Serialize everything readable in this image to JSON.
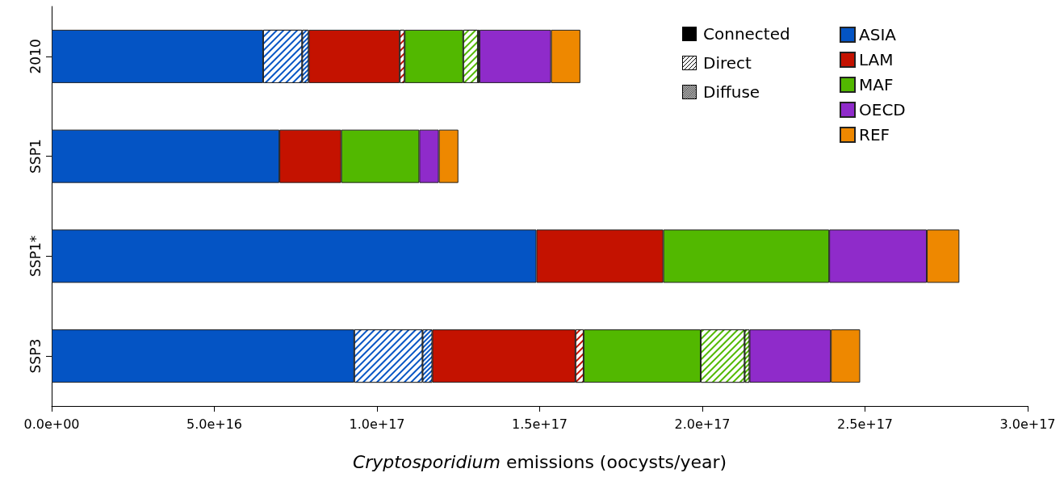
{
  "chart_data": {
    "type": "bar",
    "orientation": "horizontal",
    "stacked": true,
    "categories": [
      "2010",
      "SSP1",
      "SSP1*",
      "SSP3"
    ],
    "xlabel": "Cryptosporidium emissions (oocysts/year)",
    "annotations": [
      "Connected",
      "Direct",
      "Diffuse"
    ],
    "xlim": [
      0,
      3e+17
    ],
    "xticks": [
      {
        "value": 0,
        "label": "0.0e+00"
      },
      {
        "value": 5e+16,
        "label": "5.0e+16"
      },
      {
        "value": 1e+17,
        "label": "1.0e+17"
      },
      {
        "value": 1.5e+17,
        "label": "1.5e+17"
      },
      {
        "value": 2e+17,
        "label": "2.0e+17"
      },
      {
        "value": 2.5e+17,
        "label": "2.5e+17"
      },
      {
        "value": 3e+17,
        "label": "3.0e+17"
      }
    ],
    "grid": false,
    "legend": "top right",
    "series": [
      {
        "name": "ASIA",
        "color": "#0454c4",
        "values": [
          6.5e+16,
          7e+16,
          1.49e+17,
          9.3e+16
        ]
      },
      {
        "color": "#0454c4",
        "values": [
          1.2e+16,
          null,
          null,
          2.1e+16
        ]
      },
      {
        "color": "#0454c4",
        "values": [
          2000000000000000.0,
          null,
          null,
          3000000000000000.0
        ]
      },
      {
        "name": "LAM",
        "color": "#c41200",
        "values": [
          2.8e+16,
          1.9e+16,
          3.9e+16,
          4.4e+16
        ]
      },
      {
        "color": "#c41200",
        "values": [
          1500000000000000.0,
          null,
          null,
          2500000000000000.0
        ]
      },
      {
        "name": "MAF",
        "color": "#52b800",
        "values": [
          1.8e+16,
          2.4e+16,
          5.1e+16,
          3.6e+16
        ]
      },
      {
        "color": "#52b800",
        "values": [
          4500000000000000.0,
          null,
          null,
          1.35e+16
        ]
      },
      {
        "color": "#52b800",
        "values": [
          500000000000000.0,
          null,
          null,
          1500000000000000.0
        ]
      },
      {
        "name": "OECD",
        "color": "#8f2bca",
        "values": [
          2.2e+16,
          6000000000000000.0,
          3e+16,
          2.5e+16
        ]
      },
      {
        "name": "REF",
        "color": "#ee8800",
        "values": [
          9000000000000000.0,
          6000000000000000.0,
          1e+16,
          9000000000000000.0
        ]
      }
    ]
  }
}
